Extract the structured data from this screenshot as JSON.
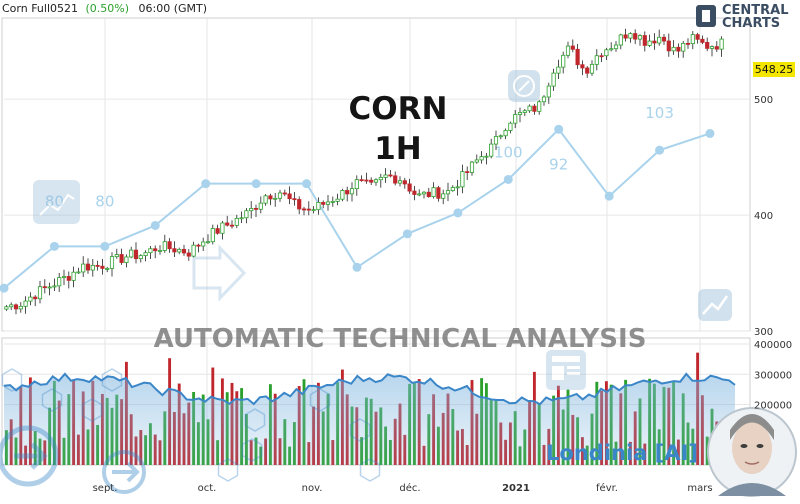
{
  "header": {
    "instrument": "Corn Full0521",
    "change": "(0.50%)",
    "time": "06:00 (GMT)"
  },
  "brand": {
    "line1": "CENTRAL",
    "line2": "CHARTS"
  },
  "overlay": {
    "title_line1": "CORN",
    "title_line2": "1H",
    "banner": "AUTOMATIC  TECHNICAL  ANALYSIS",
    "assistant": "Londinia [AI]"
  },
  "colors": {
    "up": "#2ca02c",
    "down": "#c0272d",
    "price_label_bg": "#f5e600",
    "volume_line": "#3a86c8",
    "score_line": "#a9d3ec",
    "grid": "#e6e6e6"
  },
  "chart_data": [
    {
      "type": "line",
      "name": "price",
      "ylim": [
        300,
        570
      ],
      "yticks": [
        300,
        400,
        500
      ],
      "x_tick_labels": [
        "sept.",
        "oct.",
        "nov.",
        "déc.",
        "2021",
        "févr.",
        "mars"
      ],
      "last_price": "548.25",
      "close": [
        321,
        324,
        333,
        340,
        347,
        356,
        356,
        360,
        365,
        366,
        373,
        371,
        368,
        379,
        388,
        395,
        403,
        417,
        420,
        408,
        404,
        411,
        418,
        428,
        424,
        434,
        431,
        416,
        419,
        420,
        433,
        448,
        460,
        482,
        488,
        494,
        528,
        544,
        524,
        541,
        548,
        560,
        550,
        554,
        540,
        552,
        546,
        548
      ]
    },
    {
      "type": "line",
      "name": "score",
      "point_labels": [
        {
          "label": "80",
          "value": 80
        },
        {
          "label": "80",
          "value": 80
        },
        {
          "label": "100",
          "value": 100
        },
        {
          "label": "92",
          "value": 92
        },
        {
          "label": "103",
          "value": 103
        }
      ],
      "values": [
        70,
        80,
        80,
        85,
        95,
        95,
        95,
        75,
        83,
        88,
        96,
        108,
        92,
        103,
        107
      ]
    },
    {
      "type": "bar",
      "name": "volume",
      "yticks": [
        "400000",
        "300000",
        "200000"
      ],
      "ylim": [
        0,
        420000
      ]
    }
  ]
}
